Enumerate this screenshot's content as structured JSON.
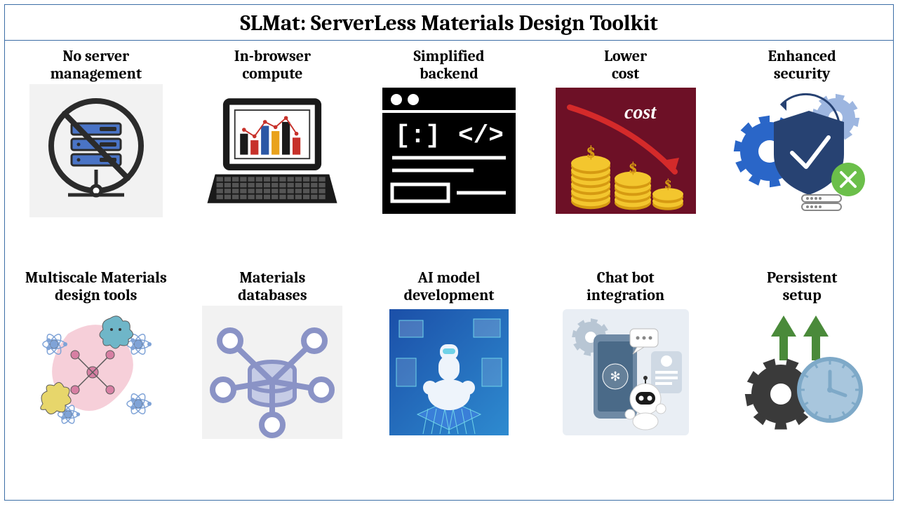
{
  "title": "SLMat: ServerLess Materials Design Toolkit",
  "border_color": "#3d6ea6",
  "background_color": "#ffffff",
  "title_fontsize": 31,
  "label_fontsize": 22,
  "font_family": "Cambria, Georgia, serif",
  "grid": {
    "cols": 5,
    "rows": 2
  },
  "features": [
    {
      "id": "no-server",
      "label": "No server\nmanagement",
      "icon": {
        "type": "server-prohibited",
        "bg": "#f2f2f2",
        "stroke": "#2b2b2b",
        "server_fill": "#4a74c6",
        "server_dark": "#2b2b2b"
      }
    },
    {
      "id": "in-browser",
      "label": "In-browser\ncompute",
      "icon": {
        "type": "laptop-chart",
        "laptop": "#1a1a1a",
        "screen": "#ffffff",
        "bars": [
          "#1a1a1a",
          "#c7312a",
          "#2b57a5",
          "#e9a21d",
          "#1a1a1a",
          "#c7312a"
        ],
        "line": "#c7312a",
        "dot": "#c7312a"
      }
    },
    {
      "id": "backend",
      "label": "Simplified\nbackend",
      "icon": {
        "type": "code-window",
        "bg": "#000000",
        "fg": "#ffffff"
      }
    },
    {
      "id": "cost",
      "label": "Lower\ncost",
      "icon": {
        "type": "cost-coins",
        "bg": "#6d1026",
        "coin": "#f3c62e",
        "coin_edge": "#d69a12",
        "arrow": "#d42a2a",
        "text": "cost",
        "text_color": "#ffffff"
      }
    },
    {
      "id": "security",
      "label": "Enhanced\nsecurity",
      "icon": {
        "type": "shield-gears",
        "shield": "#274272",
        "check": "#ffffff",
        "gear1": "#2a66c8",
        "gear2": "#9db6e0",
        "circle": "#6bbf4a",
        "x": "#ffffff",
        "server": "#888888"
      }
    },
    {
      "id": "multiscale",
      "label": "Multiscale Materials\ndesign tools",
      "icon": {
        "type": "molecules",
        "blob": "#f6cfd9",
        "mol1": "#d77fa3",
        "mol2": "#7fa3d7",
        "star": "#6fb6c8",
        "amoeba": "#e7d66b",
        "outline": "#5a5a5a"
      }
    },
    {
      "id": "databases",
      "label": "Materials\ndatabases",
      "icon": {
        "type": "db-network",
        "bg": "#f2f2f2",
        "stroke": "#8a93c6",
        "fill": "#c6cce6"
      }
    },
    {
      "id": "ai",
      "label": "AI model\ndevelopment",
      "icon": {
        "type": "ai-robot",
        "bg1": "#1b4fa8",
        "bg2": "#2e8bd0",
        "robot": "#eef4fb",
        "accent": "#6fd2e8",
        "chip": "#3a7fd8"
      }
    },
    {
      "id": "chatbot",
      "label": "Chat bot\nintegration",
      "icon": {
        "type": "chatbot",
        "bg": "#e9eef4",
        "phone": "#6f8aa5",
        "phone_screen": "#4a6a88",
        "bot": "#ffffff",
        "bot_face": "#1a1a1a",
        "bubble": "#ffffff",
        "gear": "#b8c6d4",
        "card": "#cfd9e4"
      }
    },
    {
      "id": "persistent",
      "label": "Persistent\nsetup",
      "icon": {
        "type": "gear-clock-arrows",
        "gear": "#3a3a3a",
        "clock": "#7ea9c8",
        "clock_light": "#a8c6dd",
        "arrow": "#4a8a3a"
      }
    }
  ]
}
